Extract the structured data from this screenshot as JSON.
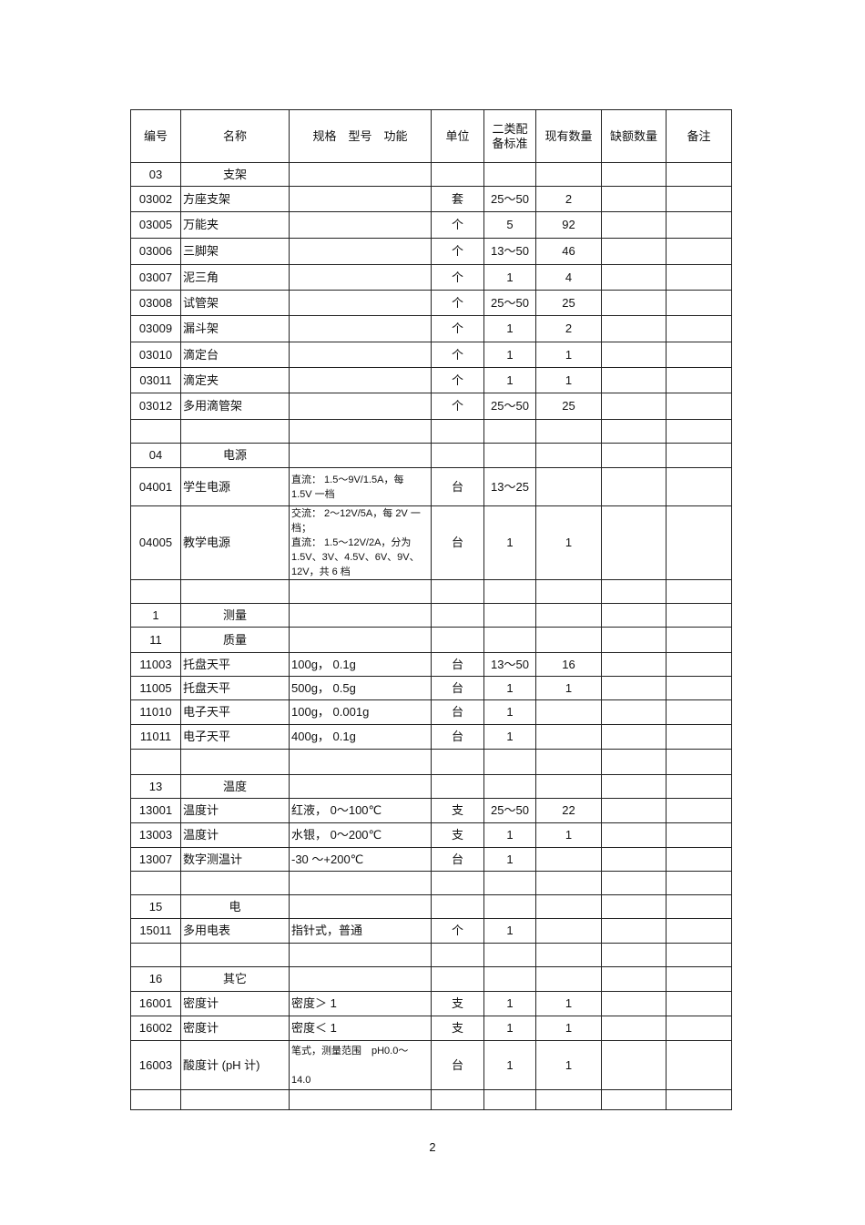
{
  "table": {
    "headers": [
      "编号",
      "名称",
      "规格　型号　功能",
      "单位",
      "二类配\n备标准",
      "现有数量",
      "缺额数量",
      "备注"
    ],
    "rows": [
      {
        "type": "category",
        "code": "03",
        "name": "支架"
      },
      {
        "type": "item",
        "code": "03002",
        "name": "方座支架",
        "spec": "",
        "unit": "套",
        "standard": "25～50",
        "quantity": "2"
      },
      {
        "type": "item",
        "code": "03005",
        "name": "万能夹",
        "spec": "",
        "unit": "个",
        "standard": "5",
        "quantity": "92"
      },
      {
        "type": "item",
        "code": "03006",
        "name": "三脚架",
        "spec": "",
        "unit": "个",
        "standard": "13～50",
        "quantity": "46"
      },
      {
        "type": "item",
        "code": "03007",
        "name": "泥三角",
        "spec": "",
        "unit": "个",
        "standard": "1",
        "quantity": "4"
      },
      {
        "type": "item",
        "code": "03008",
        "name": "试管架",
        "spec": "",
        "unit": "个",
        "standard": "25～50",
        "quantity": "25"
      },
      {
        "type": "item",
        "code": "03009",
        "name": "漏斗架",
        "spec": "",
        "unit": "个",
        "standard": "1",
        "quantity": "2"
      },
      {
        "type": "item",
        "code": "03010",
        "name": "滴定台",
        "spec": "",
        "unit": "个",
        "standard": "1",
        "quantity": "1"
      },
      {
        "type": "item",
        "code": "03011",
        "name": "滴定夹",
        "spec": "",
        "unit": "个",
        "standard": "1",
        "quantity": "1"
      },
      {
        "type": "item",
        "code": "03012",
        "name": "多用滴管架",
        "spec": "",
        "unit": "个",
        "standard": "25～50",
        "quantity": "25"
      },
      {
        "type": "empty"
      },
      {
        "type": "category",
        "code": "04",
        "name": "电源"
      },
      {
        "type": "item",
        "code": "04001",
        "name": "学生电源",
        "spec": "直流： 1.5～9V/1.5A，每\n1.5V 一档",
        "spec_small": true,
        "unit": "台",
        "standard": "13～25",
        "quantity": ""
      },
      {
        "type": "item",
        "code": "04005",
        "name": "教学电源",
        "spec": "交流： 2～12V/5A，每 2V 一\n档；\n直流： 1.5～12V/2A，分为\n1.5V、3V、4.5V、6V、9V、\n12V，共 6 档",
        "spec_small": true,
        "unit": "台",
        "standard": "1",
        "quantity": "1"
      },
      {
        "type": "empty"
      },
      {
        "type": "category",
        "code": "1",
        "name": "测量"
      },
      {
        "type": "category",
        "code": "11",
        "name": "质量"
      },
      {
        "type": "item",
        "code": "11003",
        "name": "托盘天平",
        "spec": "100g， 0.1g",
        "unit": "台",
        "standard": "13～50",
        "quantity": "16"
      },
      {
        "type": "item",
        "code": "11005",
        "name": "托盘天平",
        "spec": "500g， 0.5g",
        "unit": "台",
        "standard": "1",
        "quantity": "1"
      },
      {
        "type": "item",
        "code": "11010",
        "name": "电子天平",
        "spec": "100g， 0.001g",
        "unit": "台",
        "standard": "1",
        "quantity": ""
      },
      {
        "type": "item",
        "code": "11011",
        "name": "电子天平",
        "spec": "400g， 0.1g",
        "unit": "台",
        "standard": "1",
        "quantity": ""
      },
      {
        "type": "empty"
      },
      {
        "type": "category",
        "code": "13",
        "name": "温度"
      },
      {
        "type": "item",
        "code": "13001",
        "name": "温度计",
        "spec": "红液， 0～100℃",
        "unit": "支",
        "standard": "25～50",
        "quantity": "22"
      },
      {
        "type": "item",
        "code": "13003",
        "name": "温度计",
        "spec": "水银， 0～200℃",
        "unit": "支",
        "standard": "1",
        "quantity": "1"
      },
      {
        "type": "item",
        "code": "13007",
        "name": "数字测温计",
        "spec": "-30 ～+200℃",
        "unit": "台",
        "standard": "1",
        "quantity": ""
      },
      {
        "type": "empty"
      },
      {
        "type": "category",
        "code": "15",
        "name": "电"
      },
      {
        "type": "item",
        "code": "15011",
        "name": "多用电表",
        "spec": "指针式，普通",
        "unit": "个",
        "standard": "1",
        "quantity": ""
      },
      {
        "type": "empty"
      },
      {
        "type": "category",
        "code": "16",
        "name": "其它"
      },
      {
        "type": "item",
        "code": "16001",
        "name": "密度计",
        "spec": "密度＞ 1",
        "unit": "支",
        "standard": "1",
        "quantity": "1"
      },
      {
        "type": "item",
        "code": "16002",
        "name": "密度计",
        "spec": "密度＜ 1",
        "unit": "支",
        "standard": "1",
        "quantity": "1"
      },
      {
        "type": "item",
        "code": "16003",
        "name": "酸度计 (pH 计)",
        "spec": "笔式，测量范围　pH0.0～\n\n14.0",
        "spec_small": true,
        "unit": "台",
        "standard": "1",
        "quantity": "1"
      },
      {
        "type": "empty"
      }
    ]
  },
  "page_number": "2"
}
